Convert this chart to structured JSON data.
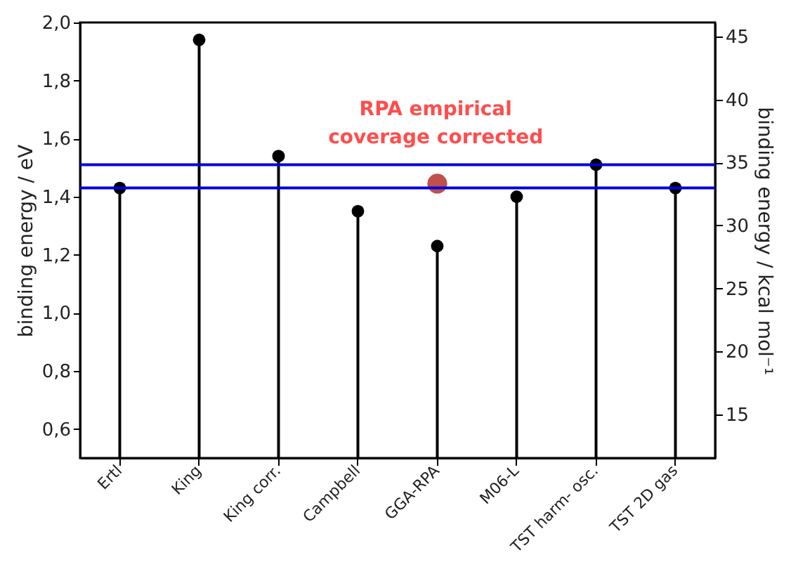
{
  "chart_data": {
    "type": "lollipop",
    "ylabel": "binding energy / eV",
    "y2label": "binding energy / kcal mol⁻¹",
    "categories": [
      "Ertl",
      "King",
      "King corr.",
      "Campbell",
      "GGA-RPA",
      "M06-L",
      "TST harm- osc.",
      "TST 2D gas"
    ],
    "series": [
      {
        "color": "#000000",
        "values": [
          1.43,
          1.94,
          1.54,
          1.35,
          1.23,
          1.4,
          1.51,
          1.43
        ]
      },
      {
        "type": "scatter",
        "color": "#c0504d",
        "x": [
          "GGA-RPA"
        ],
        "values": [
          1.445
        ]
      }
    ],
    "ylim": [
      0.5,
      2.0
    ],
    "yticks": [
      {
        "value": 0.6,
        "label": "0,6"
      },
      {
        "value": 0.8,
        "label": "0,8"
      },
      {
        "value": 1.0,
        "label": "1,0"
      },
      {
        "value": 1.2,
        "label": "1,2"
      },
      {
        "value": 1.4,
        "label": "1,4"
      },
      {
        "value": 1.6,
        "label": "1,6"
      },
      {
        "value": 1.8,
        "label": "1,8"
      },
      {
        "value": 2.0,
        "label": "2,0"
      }
    ],
    "y2lim": [
      11.53,
      46.12
    ],
    "y2ticks": [
      15,
      20,
      25,
      30,
      35,
      40,
      45
    ],
    "ref_lines": [
      {
        "axis": "y",
        "value": 1.51,
        "color": "#0000dd"
      },
      {
        "axis": "y",
        "value": 1.43,
        "color": "#0000dd"
      }
    ],
    "annotations": [
      "RPA empirical",
      "coverage corrected"
    ],
    "marker": "circle",
    "grid": false
  }
}
